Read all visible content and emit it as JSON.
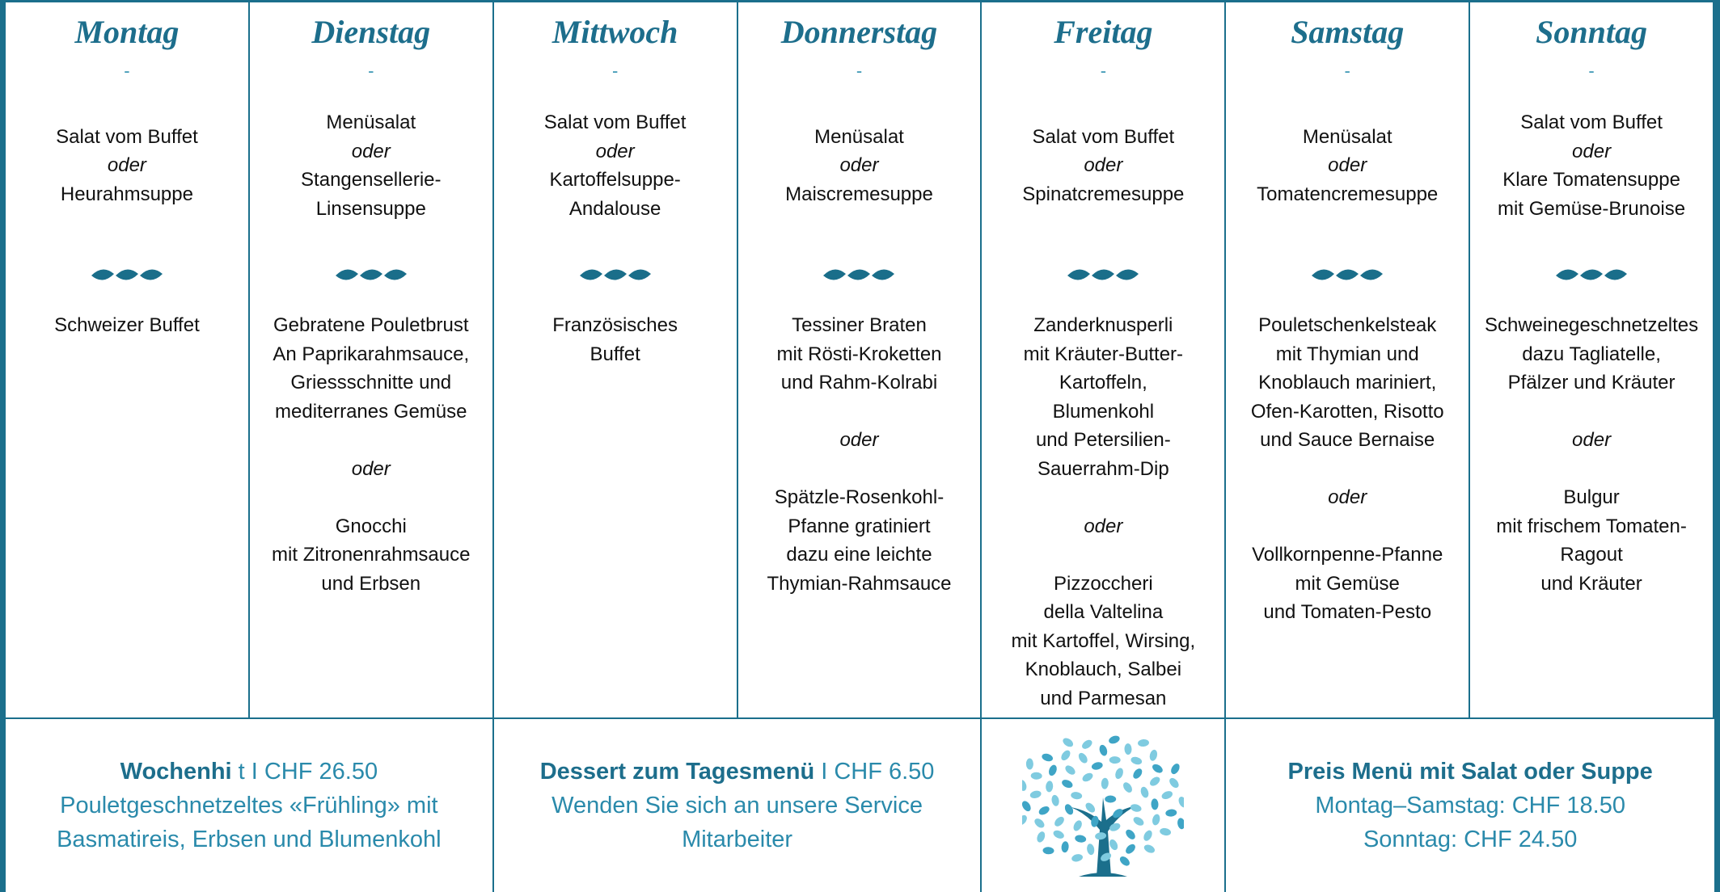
{
  "day_separator": "-",
  "connector": "oder",
  "days": [
    {
      "name": "Montag",
      "soup": [
        [
          "Salat vom Buffet"
        ],
        [
          "Heurahmsuppe"
        ]
      ],
      "main": [
        [
          "Schweizer Buffet"
        ]
      ]
    },
    {
      "name": "Dienstag",
      "soup": [
        [
          "Menüsalat"
        ],
        [
          "Stangensellerie-",
          "Linsensuppe"
        ]
      ],
      "main": [
        [
          "Gebratene Pouletbrust",
          "An Paprikarahmsauce,",
          "Griessschnitte und",
          "mediterranes Gemüse"
        ],
        [
          "Gnocchi",
          "mit Zitronenrahmsauce",
          "und Erbsen"
        ]
      ]
    },
    {
      "name": "Mittwoch",
      "soup": [
        [
          "Salat vom Buffet"
        ],
        [
          "Kartoffelsuppe-",
          "Andalouse"
        ]
      ],
      "main": [
        [
          "Französisches",
          "Buffet"
        ]
      ]
    },
    {
      "name": "Donnerstag",
      "soup": [
        [
          "Menüsalat"
        ],
        [
          "Maiscremesuppe"
        ]
      ],
      "main": [
        [
          "Tessiner Braten",
          "mit Rösti-Kroketten",
          "und Rahm-Kolrabi"
        ],
        [
          "Spätzle-Rosenkohl-",
          "Pfanne gratiniert",
          "dazu eine leichte",
          "Thymian-Rahmsauce"
        ]
      ]
    },
    {
      "name": "Freitag",
      "soup": [
        [
          "Salat vom Buffet"
        ],
        [
          "Spinatcremesuppe"
        ]
      ],
      "main": [
        [
          "Zanderknusperli",
          "mit Kräuter-Butter-",
          "Kartoffeln,",
          "Blumenkohl",
          "und Petersilien-",
          "Sauerrahm-Dip"
        ],
        [
          "Pizzoccheri",
          "della Valtelina",
          "mit Kartoffel, Wirsing,",
          "Knoblauch, Salbei",
          "und Parmesan"
        ]
      ]
    },
    {
      "name": "Samstag",
      "soup": [
        [
          "Menüsalat"
        ],
        [
          "Tomatencremesuppe"
        ]
      ],
      "main": [
        [
          "Pouletschenkelsteak",
          "mit Thymian und",
          "Knoblauch mariniert,",
          "Ofen-Karotten, Risotto",
          "und Sauce Bernaise"
        ],
        [
          "Vollkornpenne-Pfanne",
          "mit Gemüse",
          "und Tomaten-Pesto"
        ]
      ]
    },
    {
      "name": "Sonntag",
      "soup": [
        [
          "Salat vom Buffet"
        ],
        [
          "Klare Tomatensuppe",
          "mit Gemüse-Brunoise"
        ]
      ],
      "main": [
        [
          "Schweinegeschnetzeltes",
          "dazu Tagliatelle,",
          "Pfälzer und Kräuter"
        ],
        [
          "Bulgur",
          "mit frischem Tomaten-",
          "Ragout",
          "und Kräuter"
        ]
      ]
    }
  ],
  "footer": {
    "wochenhit": {
      "title_bold": "Wochenhi",
      "title_rest": "t I CHF 26.50",
      "lines": [
        "Pouletgeschnetzeltes «Frühling» mit",
        "Basmatireis, Erbsen und Blumenkohl"
      ]
    },
    "dessert": {
      "title_bold": "Dessert zum Tagesmenü",
      "title_rest": "I CHF 6.50",
      "lines": [
        "Wenden Sie sich an unsere Service",
        "Mitarbeiter"
      ]
    },
    "preis": {
      "title_bold": "Preis Menü mit Salat oder Suppe",
      "lines": [
        "Montag–Samstag: CHF 18.50",
        "Sonntag: CHF 24.50"
      ]
    }
  }
}
